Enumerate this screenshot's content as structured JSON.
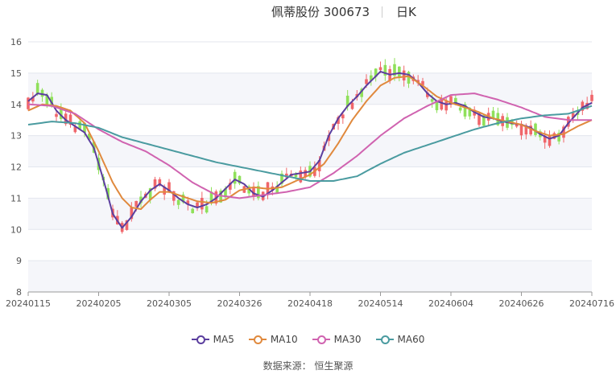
{
  "header": {
    "title": "佩蒂股份 300673",
    "period": "日K"
  },
  "source": "数据来源： 恒生聚源",
  "colors": {
    "up": "#f0666b",
    "down": "#8fe05a",
    "ma5": "#5b3e9e",
    "ma10": "#e0893d",
    "ma30": "#d063b0",
    "ma60": "#4a9ba0",
    "grid": "#e3e6ee",
    "band": "#f5f6fa"
  },
  "chart_data": {
    "type": "candlestick",
    "title": "佩蒂股份 300673",
    "ylim": [
      8,
      16
    ],
    "yticks": [
      8,
      9,
      10,
      11,
      12,
      13,
      14,
      15,
      16
    ],
    "xtick_labels": [
      "20240115",
      "20240205",
      "20240305",
      "20240326",
      "20240418",
      "20240514",
      "20240604",
      "20240626",
      "20240716"
    ],
    "xtick_positions": [
      0,
      15,
      30,
      45,
      60,
      75,
      90,
      105,
      120
    ],
    "n_points": 121,
    "legend": [
      "MA5",
      "MA10",
      "MA30",
      "MA60"
    ],
    "legend_position": "bottom",
    "series": [
      {
        "name": "MA5",
        "points": [
          [
            0,
            14.1
          ],
          [
            2,
            14.35
          ],
          [
            4,
            14.3
          ],
          [
            6,
            13.8
          ],
          [
            8,
            13.5
          ],
          [
            10,
            13.3
          ],
          [
            12,
            13.1
          ],
          [
            14,
            12.6
          ],
          [
            16,
            11.6
          ],
          [
            18,
            10.5
          ],
          [
            20,
            10.05
          ],
          [
            22,
            10.4
          ],
          [
            24,
            10.9
          ],
          [
            26,
            11.25
          ],
          [
            28,
            11.45
          ],
          [
            30,
            11.25
          ],
          [
            32,
            11.0
          ],
          [
            34,
            10.8
          ],
          [
            36,
            10.7
          ],
          [
            38,
            10.8
          ],
          [
            40,
            11.0
          ],
          [
            42,
            11.3
          ],
          [
            44,
            11.6
          ],
          [
            46,
            11.45
          ],
          [
            48,
            11.15
          ],
          [
            50,
            11.05
          ],
          [
            52,
            11.25
          ],
          [
            54,
            11.5
          ],
          [
            56,
            11.75
          ],
          [
            58,
            11.8
          ],
          [
            60,
            11.85
          ],
          [
            62,
            12.2
          ],
          [
            64,
            13.0
          ],
          [
            66,
            13.55
          ],
          [
            68,
            13.95
          ],
          [
            70,
            14.25
          ],
          [
            72,
            14.6
          ],
          [
            74,
            14.9
          ],
          [
            75,
            15.05
          ],
          [
            77,
            14.95
          ],
          [
            79,
            15.0
          ],
          [
            81,
            14.95
          ],
          [
            83,
            14.7
          ],
          [
            85,
            14.35
          ],
          [
            87,
            14.1
          ],
          [
            89,
            14.0
          ],
          [
            91,
            14.05
          ],
          [
            93,
            13.95
          ],
          [
            95,
            13.75
          ],
          [
            97,
            13.6
          ],
          [
            99,
            13.55
          ],
          [
            101,
            13.45
          ],
          [
            103,
            13.4
          ],
          [
            105,
            13.35
          ],
          [
            107,
            13.25
          ],
          [
            109,
            13.05
          ],
          [
            111,
            12.9
          ],
          [
            113,
            13.0
          ],
          [
            115,
            13.4
          ],
          [
            118,
            13.9
          ],
          [
            120,
            14.05
          ]
        ]
      },
      {
        "name": "MA10",
        "points": [
          [
            0,
            13.8
          ],
          [
            3,
            14.0
          ],
          [
            6,
            13.95
          ],
          [
            9,
            13.8
          ],
          [
            12,
            13.4
          ],
          [
            15,
            12.5
          ],
          [
            18,
            11.5
          ],
          [
            20,
            11.0
          ],
          [
            22,
            10.7
          ],
          [
            24,
            10.65
          ],
          [
            26,
            10.95
          ],
          [
            28,
            11.2
          ],
          [
            30,
            11.2
          ],
          [
            33,
            11.05
          ],
          [
            36,
            10.9
          ],
          [
            39,
            10.85
          ],
          [
            42,
            10.95
          ],
          [
            45,
            11.25
          ],
          [
            48,
            11.35
          ],
          [
            51,
            11.3
          ],
          [
            54,
            11.35
          ],
          [
            57,
            11.55
          ],
          [
            60,
            11.75
          ],
          [
            63,
            12.1
          ],
          [
            66,
            12.75
          ],
          [
            69,
            13.5
          ],
          [
            72,
            14.1
          ],
          [
            75,
            14.6
          ],
          [
            78,
            14.85
          ],
          [
            81,
            14.9
          ],
          [
            84,
            14.6
          ],
          [
            87,
            14.25
          ],
          [
            90,
            14.05
          ],
          [
            93,
            13.9
          ],
          [
            96,
            13.75
          ],
          [
            99,
            13.55
          ],
          [
            102,
            13.45
          ],
          [
            105,
            13.35
          ],
          [
            108,
            13.15
          ],
          [
            111,
            13.0
          ],
          [
            114,
            13.05
          ],
          [
            117,
            13.3
          ],
          [
            120,
            13.5
          ]
        ]
      },
      {
        "name": "MA30",
        "points": [
          [
            0,
            14.0
          ],
          [
            5,
            13.95
          ],
          [
            10,
            13.7
          ],
          [
            15,
            13.2
          ],
          [
            20,
            12.8
          ],
          [
            25,
            12.5
          ],
          [
            30,
            12.05
          ],
          [
            35,
            11.5
          ],
          [
            40,
            11.1
          ],
          [
            45,
            11.0
          ],
          [
            50,
            11.1
          ],
          [
            55,
            11.2
          ],
          [
            60,
            11.35
          ],
          [
            65,
            11.8
          ],
          [
            70,
            12.35
          ],
          [
            75,
            13.0
          ],
          [
            80,
            13.55
          ],
          [
            85,
            13.95
          ],
          [
            90,
            14.3
          ],
          [
            95,
            14.35
          ],
          [
            100,
            14.15
          ],
          [
            105,
            13.9
          ],
          [
            110,
            13.6
          ],
          [
            115,
            13.5
          ],
          [
            120,
            13.5
          ]
        ]
      },
      {
        "name": "MA60",
        "points": [
          [
            0,
            13.35
          ],
          [
            5,
            13.45
          ],
          [
            10,
            13.4
          ],
          [
            15,
            13.25
          ],
          [
            20,
            12.95
          ],
          [
            25,
            12.75
          ],
          [
            30,
            12.55
          ],
          [
            35,
            12.35
          ],
          [
            40,
            12.15
          ],
          [
            45,
            12.0
          ],
          [
            50,
            11.85
          ],
          [
            55,
            11.7
          ],
          [
            60,
            11.55
          ],
          [
            65,
            11.55
          ],
          [
            70,
            11.7
          ],
          [
            75,
            12.1
          ],
          [
            80,
            12.45
          ],
          [
            85,
            12.7
          ],
          [
            90,
            12.95
          ],
          [
            95,
            13.2
          ],
          [
            100,
            13.4
          ],
          [
            105,
            13.55
          ],
          [
            110,
            13.65
          ],
          [
            115,
            13.7
          ],
          [
            120,
            13.95
          ]
        ]
      }
    ]
  }
}
